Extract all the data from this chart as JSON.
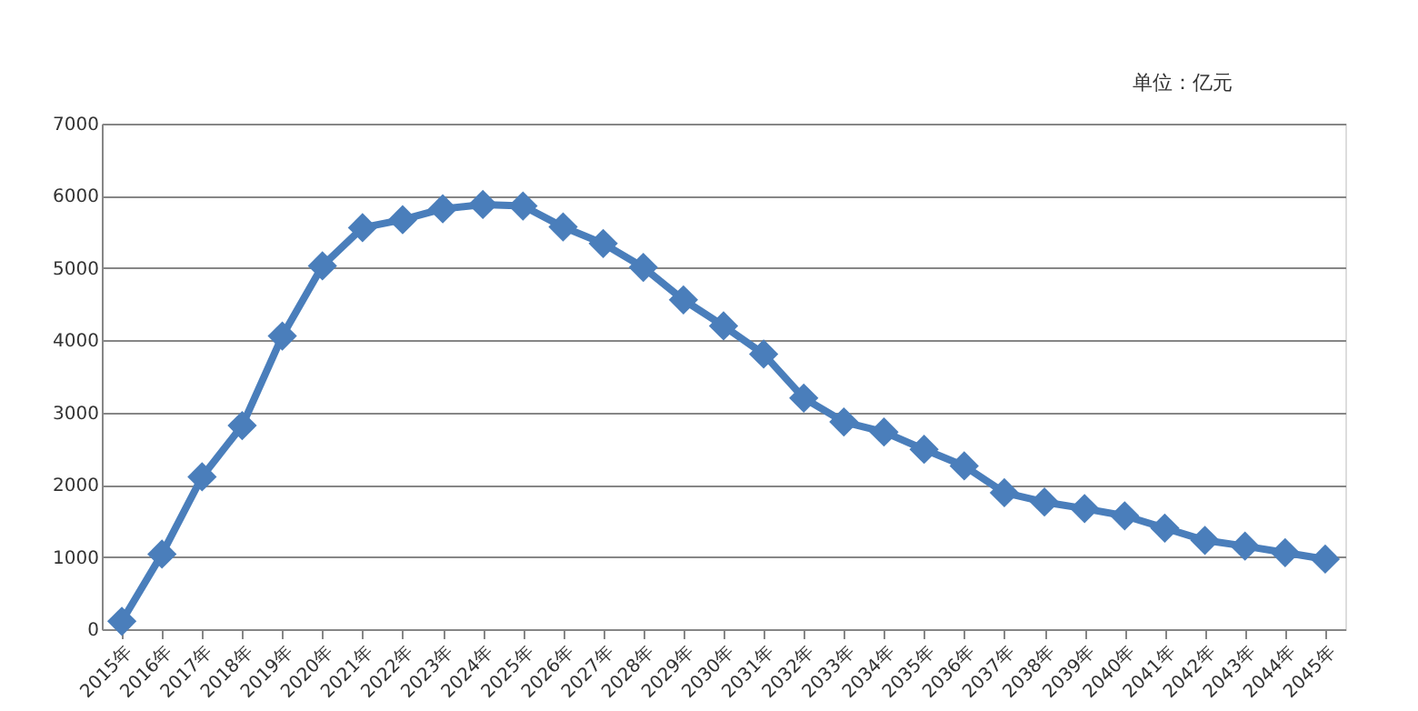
{
  "chart_data": {
    "type": "line",
    "categories": [
      "2015年",
      "2016年",
      "2017年",
      "2018年",
      "2019年",
      "2020年",
      "2021年",
      "2022年",
      "2023年",
      "2024年",
      "2025年",
      "2026年",
      "2027年",
      "2028年",
      "2029年",
      "2030年",
      "2031年",
      "2032年",
      "2033年",
      "2034年",
      "2035年",
      "2036年",
      "2037年",
      "2038年",
      "2039年",
      "2040年",
      "2041年",
      "2042年",
      "2043年",
      "2044年",
      "2045年"
    ],
    "series": [
      {
        "color": "#4a7ebb",
        "values": [
          110,
          1040,
          2110,
          2820,
          4060,
          5030,
          5560,
          5670,
          5820,
          5880,
          5860,
          5570,
          5340,
          5010,
          4560,
          4200,
          3810,
          3200,
          2870,
          2730,
          2490,
          2260,
          1890,
          1760,
          1670,
          1570,
          1400,
          1230,
          1150,
          1060,
          970
        ]
      }
    ],
    "ylim": [
      0,
      7000
    ],
    "yticks": [
      0,
      1000,
      2000,
      3000,
      4000,
      5000,
      6000,
      7000
    ],
    "grid": "y",
    "marker": "diamond",
    "line_style": "solid",
    "annotations": [
      "单位：亿元"
    ]
  }
}
